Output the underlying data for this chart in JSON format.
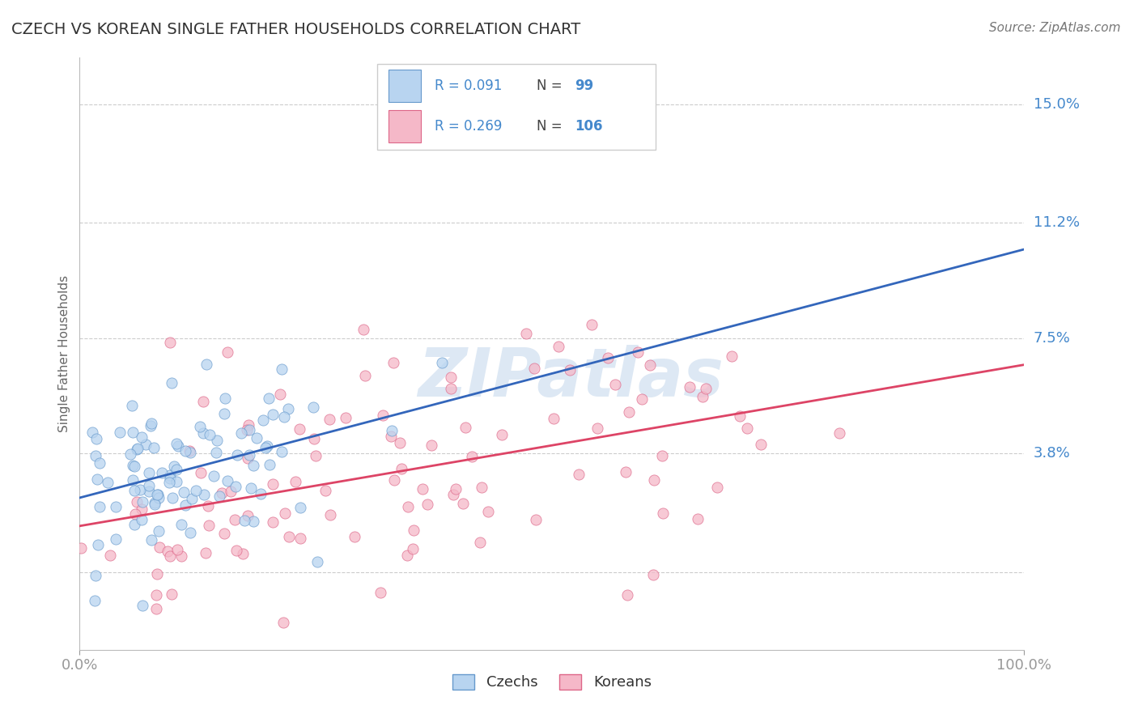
{
  "title": "CZECH VS KOREAN SINGLE FATHER HOUSEHOLDS CORRELATION CHART",
  "source_text": "Source: ZipAtlas.com",
  "ylabel": "Single Father Households",
  "xlim": [
    0.0,
    1.0
  ],
  "ylim": [
    -0.025,
    0.165
  ],
  "yticks": [
    0.0,
    0.038,
    0.075,
    0.112,
    0.15
  ],
  "ytick_labels": [
    "",
    "3.8%",
    "7.5%",
    "11.2%",
    "15.0%"
  ],
  "xticks": [
    0.0,
    1.0
  ],
  "xtick_labels": [
    "0.0%",
    "100.0%"
  ],
  "czech_R": 0.091,
  "czech_N": 99,
  "korean_R": 0.269,
  "korean_N": 106,
  "czech_fill_color": "#b8d4f0",
  "czech_edge_color": "#6699cc",
  "korean_fill_color": "#f5b8c8",
  "korean_edge_color": "#dd6688",
  "czech_trend_color": "#3366bb",
  "korean_trend_color": "#dd4466",
  "watermark_color": "#dde8f4",
  "background_color": "#ffffff",
  "grid_color": "#cccccc",
  "label_color": "#4488cc",
  "title_color": "#333333"
}
